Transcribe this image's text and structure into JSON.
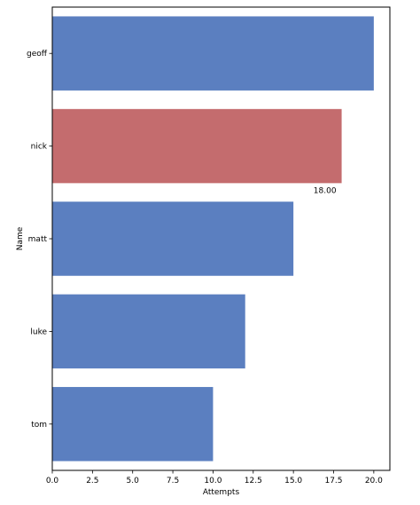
{
  "chart_data": {
    "type": "bar",
    "orientation": "horizontal",
    "categories": [
      "geoff",
      "nick",
      "matt",
      "luke",
      "tom"
    ],
    "values": [
      20,
      18,
      15,
      12,
      10
    ],
    "colors": [
      "#5b7fc0",
      "#c46c6e",
      "#5b7fc0",
      "#5b7fc0",
      "#5b7fc0"
    ],
    "highlight_color": "#c46c6e",
    "default_color": "#5b7fc0",
    "annotations": [
      {
        "category": "nick",
        "text": "18.00"
      }
    ],
    "xlabel": "Attempts",
    "ylabel": "Name",
    "xlim": [
      0,
      21
    ],
    "xticks": [
      0,
      2.5,
      5,
      7.5,
      10,
      12.5,
      15,
      17.5,
      20
    ],
    "xtick_labels": [
      "0.0",
      "2.5",
      "5.0",
      "7.5",
      "10.0",
      "12.5",
      "15.0",
      "17.5",
      "20.0"
    ],
    "grid": false,
    "legend": "none"
  }
}
